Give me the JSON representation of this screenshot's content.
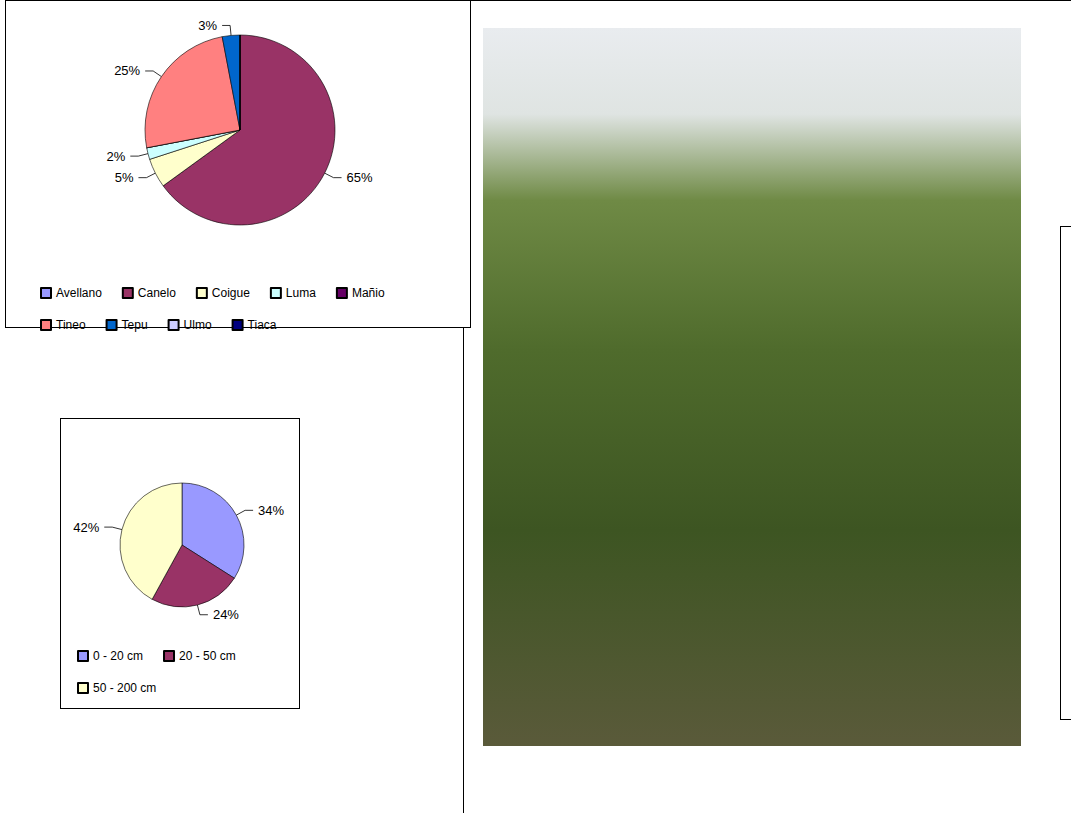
{
  "chart_data": [
    {
      "type": "pie",
      "categories": [
        "Avellano",
        "Canelo",
        "Coigue",
        "Luma",
        "Mañio",
        "Tineo",
        "Tepu",
        "Ulmo",
        "Tiaca"
      ],
      "values": [
        0,
        65,
        5,
        2,
        0,
        25,
        3,
        0,
        0
      ],
      "value_labels": [
        null,
        "65%",
        "5%",
        "2%",
        null,
        "25%",
        "3%",
        null,
        null
      ],
      "colors": [
        "#9999ff",
        "#993366",
        "#ffffcc",
        "#ccffff",
        "#660066",
        "#ff8080",
        "#0066cc",
        "#ccccff",
        "#000080"
      ],
      "data_labels": true,
      "legend": "bottom"
    },
    {
      "type": "pie",
      "categories": [
        "0 - 20 cm",
        "20 - 50 cm",
        "50 - 200 cm"
      ],
      "values": [
        34,
        24,
        42
      ],
      "value_labels": [
        "34%",
        "24%",
        "42%"
      ],
      "colors": [
        "#9999ff",
        "#993366",
        "#ffffcc"
      ],
      "data_labels": true,
      "legend": "bottom"
    }
  ]
}
